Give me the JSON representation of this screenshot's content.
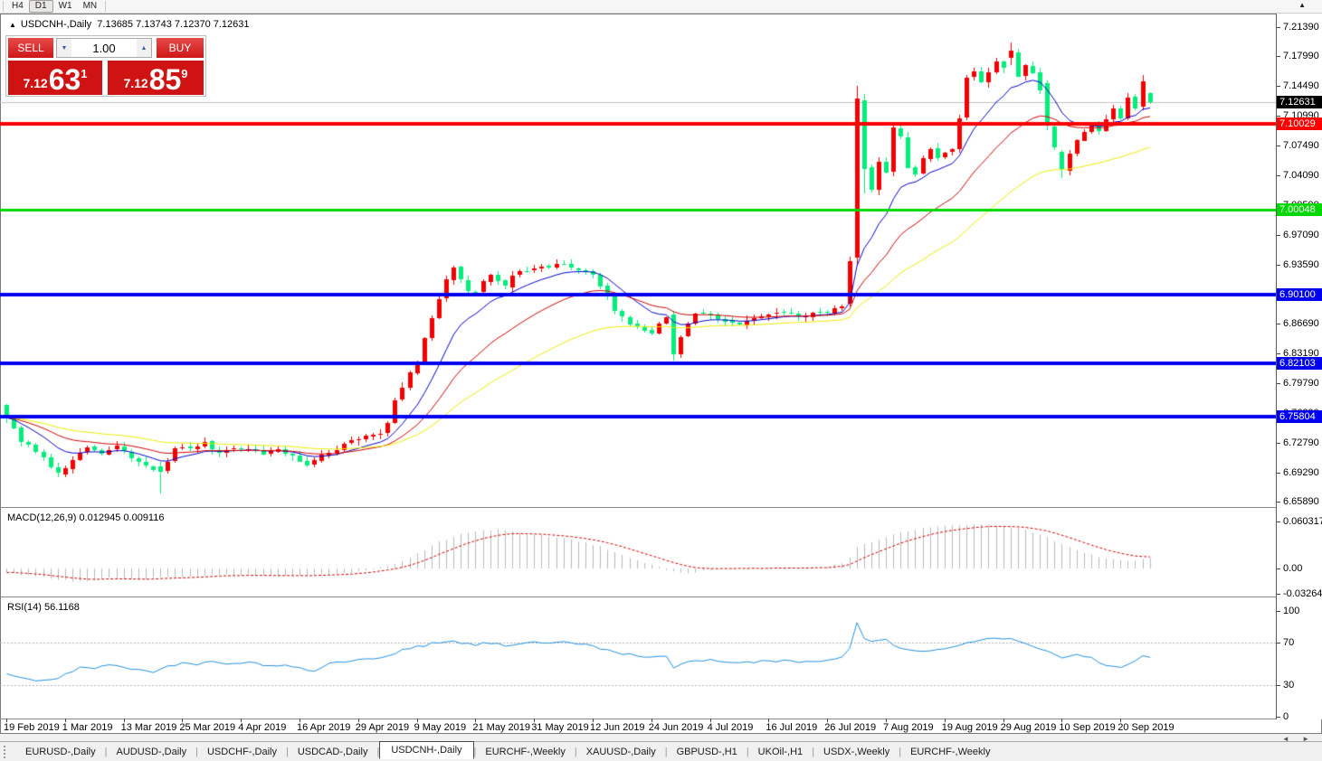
{
  "toolbar": {
    "timeframes": [
      {
        "label": "H4",
        "active": false
      },
      {
        "label": "D1",
        "active": true
      },
      {
        "label": "W1",
        "active": false
      },
      {
        "label": "MN",
        "active": false
      }
    ]
  },
  "icons": {
    "title_arrow": "▲",
    "corner_arrow": "▲",
    "spin_up": "▲",
    "spin_down": "▼",
    "scroll_left": "◄",
    "scroll_right": "►"
  },
  "chart": {
    "title_symbol": "USDCNH-,Daily",
    "title_ohlc": "7.13685 7.13743 7.12370 7.12631"
  },
  "trade": {
    "sell_label": "SELL",
    "buy_label": "BUY",
    "volume": "1.00",
    "sell_price_prefix": "7.12",
    "sell_price_big": "63",
    "sell_price_sup": "1",
    "buy_price_prefix": "7.12",
    "buy_price_big": "85",
    "buy_price_sup": "9"
  },
  "indicators": {
    "macd_label": "MACD(12,26,9) 0.012945 0.009116",
    "rsi_label": "RSI(14) 56.1168"
  },
  "price_axis": {
    "current_label": "7.12631",
    "ticks": [
      7.2139,
      7.1799,
      7.1449,
      7.1099,
      7.0749,
      7.0409,
      7.0059,
      6.9709,
      6.9359,
      6.9009,
      6.8669,
      6.8319,
      6.7979,
      6.7629,
      6.7279,
      6.6929,
      6.6589
    ]
  },
  "time_axis": {
    "labels": [
      "19 Feb 2019",
      "1 Mar 2019",
      "13 Mar 2019",
      "25 Mar 2019",
      "4 Apr 2019",
      "16 Apr 2019",
      "29 Apr 2019",
      "9 May 2019",
      "21 May 2019",
      "31 May 2019",
      "12 Jun 2019",
      "24 Jun 2019",
      "4 Jul 2019",
      "16 Jul 2019",
      "26 Jul 2019",
      "7 Aug 2019",
      "19 Aug 2019",
      "29 Aug 2019",
      "10 Sep 2019",
      "20 Sep 2019"
    ]
  },
  "tabs": {
    "items": [
      {
        "label": "EURUSD-,Daily",
        "active": false
      },
      {
        "label": "AUDUSD-,Daily",
        "active": false
      },
      {
        "label": "USDCHF-,Daily",
        "active": false
      },
      {
        "label": "USDCAD-,Daily",
        "active": false
      },
      {
        "label": "USDCNH-,Daily",
        "active": true
      },
      {
        "label": "EURCHF-,Weekly",
        "active": false
      },
      {
        "label": "XAUUSD-,Daily",
        "active": false
      },
      {
        "label": "GBPUSD-,H1",
        "active": false
      },
      {
        "label": "UKOil-,H1",
        "active": false
      },
      {
        "label": "USDX-,Weekly",
        "active": false
      },
      {
        "label": "EURCHF-,Weekly",
        "active": false
      }
    ]
  },
  "chart_data": {
    "type": "candlestick",
    "symbol": "USDCNH",
    "timeframe": "Daily",
    "num_candles": 157,
    "last_ohlc": {
      "open": 7.13685,
      "high": 7.13743,
      "low": 7.1237,
      "close": 7.12631
    },
    "current_price": 7.12631,
    "colors": {
      "up_candle": "#f40000",
      "down_candle": "#00ef7a",
      "ma_fast": "#0000cc",
      "ma_mid": "#d40000",
      "ma_slow": "#ecec00",
      "current_line": "#c0c0c0",
      "macd_hist": "#b8b8b8",
      "macd_signal": "#d40000",
      "rsi_line": "#2090e0",
      "rsi_levels": "#b0b0b0"
    },
    "ma_periods": {
      "fast": 10,
      "mid": 22,
      "slow": 45
    },
    "hlines": [
      {
        "price": 7.10029,
        "label": "7.10029",
        "color": "#ff0000",
        "width": 4
      },
      {
        "price": 7.00048,
        "label": "7.00048",
        "color": "#00d800",
        "width": 3
      },
      {
        "price": 6.901,
        "label": "6.90100",
        "color": "#0000ee",
        "width": 4
      },
      {
        "price": 6.82103,
        "label": "6.82103",
        "color": "#0000ee",
        "width": 4
      },
      {
        "price": 6.75804,
        "label": "6.75804",
        "color": "#0000ee",
        "width": 4
      }
    ],
    "close_anchors": [
      [
        0,
        6.758
      ],
      [
        2,
        6.728
      ],
      [
        4,
        6.718
      ],
      [
        6,
        6.7
      ],
      [
        7,
        6.694
      ],
      [
        9,
        6.706
      ],
      [
        11,
        6.722
      ],
      [
        13,
        6.715
      ],
      [
        15,
        6.723
      ],
      [
        17,
        6.71
      ],
      [
        19,
        6.7
      ],
      [
        21,
        6.694
      ],
      [
        23,
        6.72
      ],
      [
        25,
        6.722
      ],
      [
        27,
        6.727
      ],
      [
        29,
        6.716
      ],
      [
        31,
        6.723
      ],
      [
        33,
        6.72
      ],
      [
        35,
        6.716
      ],
      [
        37,
        6.719
      ],
      [
        39,
        6.712
      ],
      [
        41,
        6.702
      ],
      [
        43,
        6.713
      ],
      [
        45,
        6.721
      ],
      [
        47,
        6.73
      ],
      [
        49,
        6.734
      ],
      [
        51,
        6.74
      ],
      [
        52,
        6.752
      ],
      [
        53,
        6.776
      ],
      [
        54,
        6.792
      ],
      [
        55,
        6.81
      ],
      [
        56,
        6.822
      ],
      [
        57,
        6.85
      ],
      [
        58,
        6.875
      ],
      [
        59,
        6.898
      ],
      [
        60,
        6.918
      ],
      [
        61,
        6.932
      ],
      [
        62,
        6.92
      ],
      [
        63,
        6.905
      ],
      [
        64,
        6.902
      ],
      [
        65,
        6.915
      ],
      [
        66,
        6.925
      ],
      [
        67,
        6.918
      ],
      [
        68,
        6.91
      ],
      [
        69,
        6.922
      ],
      [
        70,
        6.928
      ],
      [
        72,
        6.93
      ],
      [
        74,
        6.933
      ],
      [
        76,
        6.938
      ],
      [
        78,
        6.928
      ],
      [
        80,
        6.926
      ],
      [
        81,
        6.913
      ],
      [
        82,
        6.9
      ],
      [
        83,
        6.88
      ],
      [
        85,
        6.868
      ],
      [
        87,
        6.858
      ],
      [
        88,
        6.855
      ],
      [
        89,
        6.868
      ],
      [
        90,
        6.875
      ],
      [
        91,
        6.832
      ],
      [
        92,
        6.85
      ],
      [
        93,
        6.868
      ],
      [
        94,
        6.878
      ],
      [
        96,
        6.877
      ],
      [
        98,
        6.87
      ],
      [
        100,
        6.868
      ],
      [
        102,
        6.874
      ],
      [
        104,
        6.876
      ],
      [
        106,
        6.881
      ],
      [
        108,
        6.875
      ],
      [
        110,
        6.879
      ],
      [
        112,
        6.88
      ],
      [
        113,
        6.884
      ],
      [
        114,
        6.889
      ],
      [
        115,
        6.94
      ],
      [
        116,
        7.13
      ],
      [
        117,
        7.048
      ],
      [
        118,
        7.022
      ],
      [
        119,
        7.058
      ],
      [
        120,
        7.045
      ],
      [
        121,
        7.095
      ],
      [
        122,
        7.085
      ],
      [
        123,
        7.048
      ],
      [
        124,
        7.04
      ],
      [
        125,
        7.062
      ],
      [
        126,
        7.07
      ],
      [
        127,
        7.062
      ],
      [
        128,
        7.065
      ],
      [
        129,
        7.072
      ],
      [
        130,
        7.105
      ],
      [
        131,
        7.155
      ],
      [
        132,
        7.162
      ],
      [
        133,
        7.15
      ],
      [
        134,
        7.162
      ],
      [
        135,
        7.175
      ],
      [
        136,
        7.168
      ],
      [
        137,
        7.186
      ],
      [
        138,
        7.158
      ],
      [
        139,
        7.168
      ],
      [
        140,
        7.162
      ],
      [
        141,
        7.14
      ],
      [
        142,
        7.098
      ],
      [
        143,
        7.072
      ],
      [
        144,
        7.048
      ],
      [
        145,
        7.066
      ],
      [
        146,
        7.082
      ],
      [
        147,
        7.092
      ],
      [
        148,
        7.098
      ],
      [
        149,
        7.094
      ],
      [
        150,
        7.105
      ],
      [
        151,
        7.12
      ],
      [
        152,
        7.108
      ],
      [
        153,
        7.133
      ],
      [
        154,
        7.118
      ],
      [
        155,
        7.15
      ],
      [
        156,
        7.12631
      ]
    ],
    "candle_overrides": {
      "21": [
        6.7,
        6.705,
        6.668,
        6.694
      ],
      "91": [
        6.878,
        6.882,
        6.824,
        6.832
      ],
      "115": [
        6.89,
        6.945,
        6.887,
        6.94
      ],
      "116": [
        6.944,
        7.145,
        6.935,
        7.13
      ],
      "117": [
        7.128,
        7.136,
        7.02,
        7.048
      ],
      "131": [
        7.108,
        7.158,
        7.105,
        7.155
      ],
      "137": [
        7.178,
        7.196,
        7.17,
        7.186
      ],
      "142": [
        7.148,
        7.152,
        7.094,
        7.098
      ],
      "144": [
        7.068,
        7.07,
        7.037,
        7.048
      ],
      "155": [
        7.12,
        7.158,
        7.117,
        7.15
      ],
      "156": [
        7.13685,
        7.13743,
        7.1237,
        7.12631
      ]
    },
    "macd": {
      "params": "12,26,9",
      "main_value": 0.012945,
      "signal_value": 0.009116,
      "axis": [
        {
          "v": 0.060317,
          "label": "0.060317"
        },
        {
          "v": 0,
          "label": "0.00"
        },
        {
          "v": -0.032648,
          "label": "-0.032648"
        }
      ],
      "hist_anchors": [
        [
          0,
          -0.005
        ],
        [
          4,
          -0.01
        ],
        [
          7,
          -0.014
        ],
        [
          10,
          -0.017
        ],
        [
          14,
          -0.012
        ],
        [
          18,
          -0.014
        ],
        [
          22,
          -0.011
        ],
        [
          26,
          -0.009
        ],
        [
          30,
          -0.008
        ],
        [
          34,
          -0.008
        ],
        [
          38,
          -0.009
        ],
        [
          42,
          -0.009
        ],
        [
          46,
          -0.006
        ],
        [
          49,
          -0.002
        ],
        [
          51,
          0.001
        ],
        [
          53,
          0.006
        ],
        [
          55,
          0.014
        ],
        [
          57,
          0.024
        ],
        [
          59,
          0.034
        ],
        [
          61,
          0.041
        ],
        [
          63,
          0.046
        ],
        [
          65,
          0.049
        ],
        [
          67,
          0.05
        ],
        [
          69,
          0.047
        ],
        [
          71,
          0.044
        ],
        [
          73,
          0.042
        ],
        [
          75,
          0.04
        ],
        [
          77,
          0.037
        ],
        [
          79,
          0.033
        ],
        [
          81,
          0.028
        ],
        [
          83,
          0.021
        ],
        [
          85,
          0.014
        ],
        [
          87,
          0.007
        ],
        [
          89,
          0.002
        ],
        [
          91,
          -0.004
        ],
        [
          93,
          -0.006
        ],
        [
          95,
          -0.003
        ],
        [
          97,
          0.0
        ],
        [
          100,
          0.001
        ],
        [
          103,
          0.0
        ],
        [
          106,
          0.001
        ],
        [
          109,
          0.001
        ],
        [
          112,
          0.002
        ],
        [
          114,
          0.007
        ],
        [
          115,
          0.014
        ],
        [
          116,
          0.028
        ],
        [
          118,
          0.034
        ],
        [
          120,
          0.04
        ],
        [
          122,
          0.046
        ],
        [
          124,
          0.05
        ],
        [
          126,
          0.053
        ],
        [
          128,
          0.055
        ],
        [
          130,
          0.056
        ],
        [
          132,
          0.057
        ],
        [
          134,
          0.056
        ],
        [
          136,
          0.054
        ],
        [
          138,
          0.052
        ],
        [
          140,
          0.047
        ],
        [
          142,
          0.04
        ],
        [
          144,
          0.031
        ],
        [
          146,
          0.023
        ],
        [
          148,
          0.017
        ],
        [
          150,
          0.013
        ],
        [
          152,
          0.01
        ],
        [
          154,
          0.011
        ],
        [
          156,
          0.0129
        ]
      ]
    },
    "rsi": {
      "period": 14,
      "value": 56.1168,
      "levels": [
        70,
        30
      ],
      "axis": [
        100,
        70,
        30,
        0
      ],
      "anchors": [
        [
          0,
          40
        ],
        [
          2,
          36
        ],
        [
          4,
          33
        ],
        [
          6,
          34
        ],
        [
          8,
          40
        ],
        [
          10,
          46
        ],
        [
          12,
          45
        ],
        [
          14,
          49
        ],
        [
          16,
          47
        ],
        [
          18,
          44
        ],
        [
          20,
          41
        ],
        [
          22,
          48
        ],
        [
          24,
          51
        ],
        [
          26,
          50
        ],
        [
          28,
          52
        ],
        [
          30,
          49
        ],
        [
          32,
          51
        ],
        [
          34,
          50
        ],
        [
          36,
          48
        ],
        [
          38,
          50
        ],
        [
          40,
          46
        ],
        [
          42,
          44
        ],
        [
          44,
          50
        ],
        [
          46,
          52
        ],
        [
          48,
          54
        ],
        [
          50,
          55
        ],
        [
          52,
          58
        ],
        [
          54,
          63
        ],
        [
          56,
          66
        ],
        [
          58,
          69
        ],
        [
          60,
          72
        ],
        [
          62,
          70
        ],
        [
          64,
          68
        ],
        [
          66,
          70
        ],
        [
          68,
          67
        ],
        [
          70,
          69
        ],
        [
          72,
          70
        ],
        [
          74,
          69
        ],
        [
          76,
          71
        ],
        [
          78,
          69
        ],
        [
          80,
          67
        ],
        [
          82,
          63
        ],
        [
          84,
          60
        ],
        [
          86,
          57
        ],
        [
          88,
          56
        ],
        [
          90,
          58
        ],
        [
          91,
          47
        ],
        [
          92,
          50
        ],
        [
          94,
          53
        ],
        [
          96,
          54
        ],
        [
          98,
          52
        ],
        [
          100,
          51
        ],
        [
          102,
          52
        ],
        [
          104,
          52
        ],
        [
          106,
          53
        ],
        [
          108,
          52
        ],
        [
          110,
          53
        ],
        [
          112,
          53
        ],
        [
          114,
          57
        ],
        [
          115,
          64
        ],
        [
          116,
          89
        ],
        [
          117,
          73
        ],
        [
          118,
          72
        ],
        [
          120,
          74
        ],
        [
          121,
          67
        ],
        [
          123,
          63
        ],
        [
          125,
          63
        ],
        [
          127,
          64
        ],
        [
          129,
          66
        ],
        [
          131,
          70
        ],
        [
          133,
          73
        ],
        [
          135,
          74
        ],
        [
          137,
          74
        ],
        [
          139,
          70
        ],
        [
          141,
          65
        ],
        [
          142,
          61
        ],
        [
          143,
          58
        ],
        [
          144,
          56
        ],
        [
          145,
          58
        ],
        [
          146,
          59
        ],
        [
          148,
          55
        ],
        [
          150,
          49
        ],
        [
          151,
          47
        ],
        [
          152,
          46
        ],
        [
          153,
          50
        ],
        [
          154,
          53
        ],
        [
          155,
          57
        ],
        [
          156,
          56.1
        ]
      ]
    }
  }
}
